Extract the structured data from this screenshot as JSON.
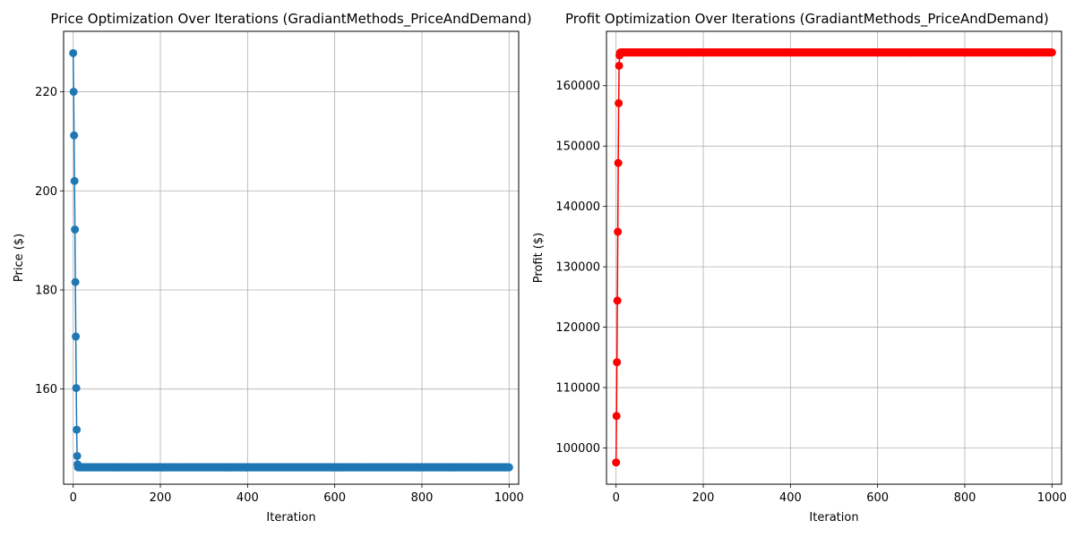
{
  "chart_data": [
    {
      "type": "line",
      "title": "Price Optimization Over Iterations (GradiantMethods_PriceAndDemand)",
      "xlabel": "Iteration",
      "ylabel": "Price ($)",
      "xlim": [
        -22,
        1022
      ],
      "ylim": [
        140.8,
        232.2
      ],
      "xticks": [
        0,
        200,
        400,
        600,
        800,
        1000
      ],
      "yticks": [
        160,
        180,
        200,
        220
      ],
      "grid": true,
      "series": [
        {
          "color": "#1f77b4",
          "marker": "circle",
          "early_iterations": [
            0,
            1,
            2,
            3,
            4,
            5,
            6,
            7,
            8,
            9,
            10
          ],
          "early_values": [
            227.8,
            220.0,
            211.2,
            202.0,
            192.2,
            181.6,
            170.6,
            160.2,
            151.8,
            146.5,
            144.8
          ],
          "converged_value": 144.2,
          "iterations_total": 1000
        }
      ]
    },
    {
      "type": "line",
      "title": "Profit Optimization Over Iterations (GradiantMethods_PriceAndDemand)",
      "xlabel": "Iteration",
      "ylabel": "Profit ($)",
      "xlim": [
        -22,
        1022
      ],
      "ylim": [
        94000,
        169000
      ],
      "xticks": [
        0,
        200,
        400,
        600,
        800,
        1000
      ],
      "yticks": [
        100000,
        110000,
        120000,
        130000,
        140000,
        150000,
        160000
      ],
      "grid": true,
      "series": [
        {
          "color": "#ff0000",
          "marker": "circle",
          "early_iterations": [
            0,
            1,
            2,
            3,
            4,
            5,
            6,
            7,
            8,
            9,
            10
          ],
          "early_values": [
            97600,
            105300,
            114200,
            124400,
            135800,
            147200,
            157100,
            163300,
            165000,
            165400,
            165500
          ],
          "converged_value": 165500,
          "iterations_total": 1000
        }
      ]
    }
  ]
}
